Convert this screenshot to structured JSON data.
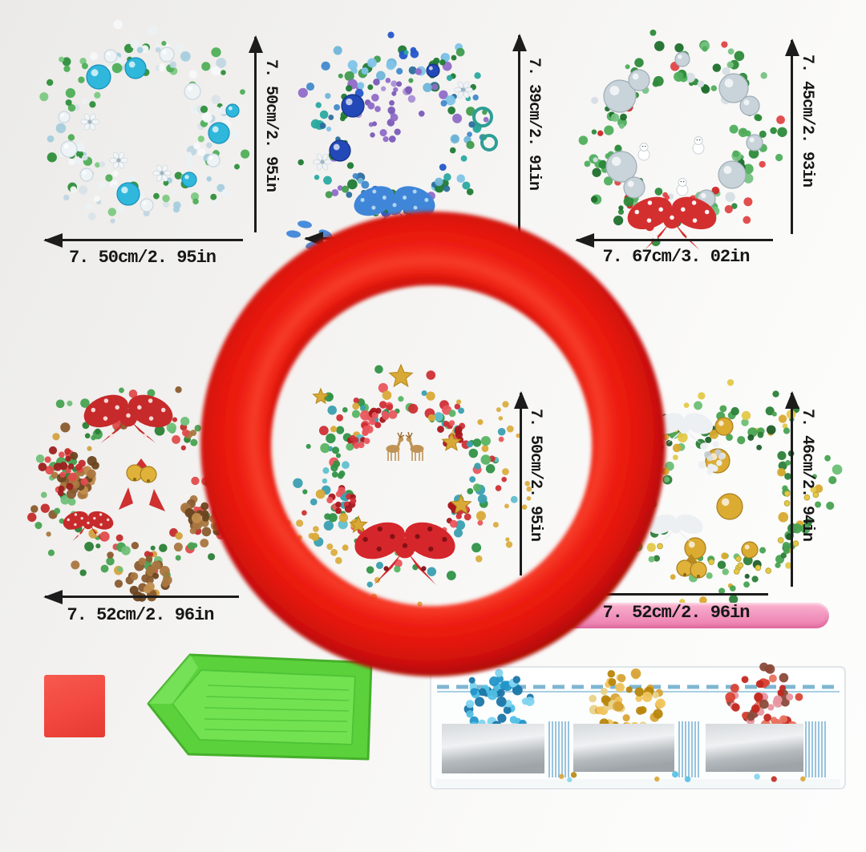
{
  "photo": {
    "description": "Christmas wreath diamond painting coasters size chart with red round frame and tools",
    "background_color": "#f3f2f0"
  },
  "dimension_labels": {
    "wreath1_height": "7. 50cm/2. 95in",
    "wreath1_width": "7. 50cm/2. 95in",
    "wreath2_height": "7. 39cm/2. 91in",
    "wreath3_height": "7. 45cm/2. 93in",
    "wreath3_width": "7. 67cm/3. 02in",
    "wreath4_width": "7. 52cm/2. 96in",
    "wreath5_height": "7. 50cm/2. 95in",
    "wreath6_height": "7. 46cm/2. 94in",
    "wreath6_width": "7. 52cm/2. 96in"
  },
  "ring": {
    "color": "#e81711"
  },
  "wreaths": [
    {
      "id": "w1",
      "name": "white-teal-wreath",
      "foliage": [
        "#2e8f3b",
        "#4fae57",
        "#7cc982",
        "#ebf1f4",
        "#f5f8fa",
        "#d9e3e9",
        "#c0d6e1",
        "#ebf1f4",
        "#2e8f3b",
        "#a5cdde"
      ],
      "orb": "#2fb7dc",
      "orb_stroke": "#1a8fb8",
      "pearl": "#eef3f6"
    },
    {
      "id": "w2",
      "name": "blue-purple-wreath",
      "foliage": [
        "#1f7a34",
        "#3f9b4e",
        "#2c6e9e",
        "#4189cc",
        "#7fc4e8",
        "#2aa9a0",
        "#6fb5d8",
        "#1f7a34",
        "#2456c9",
        "#8f6bc7"
      ],
      "orb": "#2349b8",
      "orb_stroke": "#16307f",
      "ring_orb": "#2d9e96",
      "purple": [
        "#8f6bc7",
        "#a98fd6",
        "#7a5ab8"
      ],
      "bow": "#3f86d9",
      "bow_dots": "#b8d9f2"
    },
    {
      "id": "w3",
      "name": "red-green-silver-wreath",
      "foliage": [
        "#2c8a39",
        "#4fae5c",
        "#77c283",
        "#cc2727",
        "#e04545",
        "#2c8a39",
        "#4fae5c",
        "#d6dee4",
        "#1f6f2c"
      ],
      "orb": "#c9d3da",
      "orb_stroke": "#9fadb6",
      "bow": "#d42f2f",
      "bow_dots": "#ffffff",
      "snowman": "#ffffff"
    },
    {
      "id": "w4",
      "name": "pinecone-bells-wreath",
      "foliage": [
        "#2a7f35",
        "#47a251",
        "#6fbf78",
        "#c32b2b",
        "#8a5a2e",
        "#2a7f35",
        "#47a251",
        "#a9763f",
        "#d1a23f",
        "#e04b4b"
      ],
      "cone": [
        "#8a5a2e",
        "#a9763f",
        "#6b4520",
        "#c08d4e"
      ],
      "bell": "#e0b23a",
      "ribbon": "#cf3030",
      "bow": "#c62a2a",
      "bow_dots": "#ffdede"
    },
    {
      "id": "w5",
      "name": "reindeer-stars-wreath",
      "foliage": [
        "#2f9246",
        "#58b463",
        "#3a9fb0",
        "#5fc0cc",
        "#cf2f35",
        "#d9a937",
        "#2f9246",
        "#3a9fb0",
        "#e8565c"
      ],
      "flower": [
        "#cf2f35",
        "#e8565c",
        "#a8161c"
      ],
      "star": "#d9a937",
      "deer": "#c09355",
      "bow": "#d5262c",
      "bow_dots": "#7e1013",
      "confetti": "#d9a937"
    },
    {
      "id": "w6",
      "name": "gold-bauble-wreath",
      "foliage": [
        "#2c7f38",
        "#48a251",
        "#1f5f2a",
        "#6cbf74",
        "#e3c94a",
        "#2c7f38",
        "#48a251",
        "#d9a92f"
      ],
      "orb": "#dcab32",
      "orb_stroke": "#a87f1d",
      "white_bow": "#edf0f3",
      "bell": "#e0b23a",
      "dots": "#e3c94a"
    }
  ],
  "tools": {
    "wax_square_color": "#f2473f",
    "tray_color": "#5bd23c",
    "tray_inner_color": "#72e251",
    "pen_color": "#f298c0",
    "bag": {
      "zipper_color": "#7fb6d2",
      "foil_color": "#c9cdd0",
      "bead_clusters": [
        [
          "#2496c9",
          "#51bfe4",
          "#1b76a8",
          "#7fd4ef"
        ],
        [
          "#d8a437",
          "#f0c45c",
          "#b8860b",
          "#e8d28a"
        ],
        [
          "#d94536",
          "#e8735f",
          "#8a4a3a",
          "#e895a0",
          "#c2281f"
        ]
      ]
    }
  }
}
